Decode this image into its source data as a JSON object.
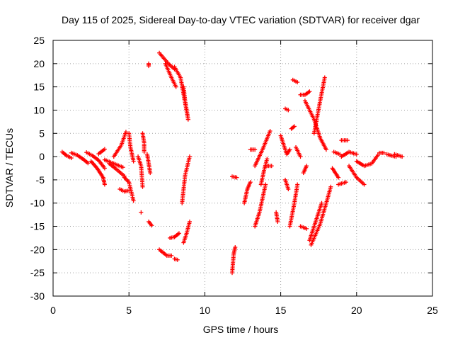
{
  "chart_data": {
    "type": "scatter",
    "title": "Day 115 of 2025, Sidereal Day-to-day VTEC variation (SDTVAR) for receiver dgar",
    "xlabel": "GPS time / hours",
    "ylabel": "SDTVAR / TECUs",
    "xlim": [
      0,
      25
    ],
    "ylim": [
      -30,
      25
    ],
    "xticks": [
      0,
      5,
      10,
      15,
      20,
      25
    ],
    "yticks": [
      -30,
      -25,
      -20,
      -15,
      -10,
      -5,
      0,
      5,
      10,
      15,
      20,
      25
    ],
    "grid": true,
    "marker": "plus",
    "color": "#ff0000",
    "series": [
      {
        "segments": [
          [
            [
              0.6,
              1.0
            ],
            [
              0.9,
              0.2
            ],
            [
              1.2,
              -0.3
            ]
          ],
          [
            [
              1.2,
              0.8
            ],
            [
              1.6,
              0.3
            ],
            [
              2.0,
              -0.6
            ],
            [
              2.3,
              -1.4
            ]
          ],
          [
            [
              2.2,
              0.9
            ],
            [
              2.6,
              0.2
            ],
            [
              3.0,
              -0.8
            ],
            [
              3.4,
              -2.5
            ]
          ],
          [
            [
              2.5,
              -1.0
            ],
            [
              2.9,
              -2.5
            ],
            [
              3.3,
              -4.5
            ],
            [
              3.4,
              -6.0
            ]
          ],
          [
            [
              3.0,
              0.6
            ],
            [
              3.4,
              1.6
            ]
          ],
          [
            [
              3.4,
              -0.7
            ],
            [
              4.0,
              -1.5
            ],
            [
              4.6,
              -2.3
            ]
          ],
          [
            [
              3.7,
              -1.5
            ],
            [
              4.2,
              -2.8
            ],
            [
              4.7,
              -4.2
            ]
          ],
          [
            [
              4.0,
              0.0
            ],
            [
              4.5,
              2.5
            ],
            [
              4.8,
              5.3
            ]
          ],
          [
            [
              4.4,
              -7.0
            ],
            [
              4.7,
              -7.5
            ],
            [
              5.0,
              -7.3
            ]
          ],
          [
            [
              4.7,
              -4.5
            ],
            [
              5.0,
              -5.5
            ],
            [
              5.3,
              -9.5
            ]
          ],
          [
            [
              5.0,
              5.0
            ],
            [
              5.1,
              2.0
            ],
            [
              5.3,
              -1.0
            ]
          ],
          [
            [
              5.6,
              0.0
            ],
            [
              5.8,
              -2.0
            ],
            [
              5.9,
              -6.5
            ]
          ],
          [
            [
              5.9,
              5.0
            ],
            [
              6.0,
              3.0
            ],
            [
              6.0,
              1.0
            ]
          ],
          [
            [
              6.3,
              20.0
            ],
            [
              6.3,
              19.5
            ]
          ],
          [
            [
              6.2,
              0.5
            ],
            [
              6.3,
              -1.5
            ],
            [
              6.4,
              -3.5
            ]
          ],
          [
            [
              6.3,
              -14.0
            ],
            [
              6.5,
              -14.8
            ]
          ],
          [
            [
              7.0,
              22.3
            ],
            [
              7.6,
              20.0
            ],
            [
              8.0,
              18.8
            ]
          ],
          [
            [
              7.4,
              20.0
            ],
            [
              7.8,
              17.0
            ],
            [
              8.1,
              15.0
            ]
          ],
          [
            [
              8.0,
              19.3
            ],
            [
              8.4,
              17.0
            ],
            [
              8.9,
              8.0
            ]
          ],
          [
            [
              8.6,
              15.0
            ],
            [
              8.7,
              12.0
            ],
            [
              8.9,
              8.0
            ]
          ],
          [
            [
              7.0,
              -20.0
            ],
            [
              7.5,
              -21.3
            ],
            [
              7.8,
              -21.3
            ]
          ],
          [
            [
              8.0,
              -22.0
            ],
            [
              8.2,
              -22.2
            ]
          ],
          [
            [
              7.7,
              -17.5
            ],
            [
              8.0,
              -17.3
            ],
            [
              8.3,
              -16.5
            ]
          ],
          [
            [
              8.5,
              -10.0
            ],
            [
              8.7,
              -4.0
            ],
            [
              9.0,
              0.0
            ]
          ],
          [
            [
              8.6,
              -18.5
            ],
            [
              8.8,
              -16.5
            ],
            [
              9.0,
              -14.0
            ]
          ],
          [
            [
              5.8,
              -12.0
            ]
          ],
          [
            [
              11.8,
              -25.0
            ],
            [
              11.9,
              -21.0
            ],
            [
              12.0,
              -19.5
            ]
          ],
          [
            [
              11.8,
              -4.3
            ],
            [
              12.1,
              -4.5
            ]
          ],
          [
            [
              12.6,
              -10.0
            ],
            [
              12.8,
              -7.0
            ],
            [
              13.0,
              -5.5
            ]
          ],
          [
            [
              13.0,
              1.5
            ],
            [
              13.3,
              1.5
            ]
          ],
          [
            [
              13.3,
              -2.0
            ],
            [
              13.8,
              1.5
            ],
            [
              14.3,
              5.5
            ]
          ],
          [
            [
              13.3,
              -15.0
            ],
            [
              13.6,
              -12.0
            ],
            [
              14.0,
              -6.0
            ]
          ],
          [
            [
              13.7,
              -6.0
            ],
            [
              13.9,
              -3.0
            ],
            [
              14.1,
              -0.5
            ]
          ],
          [
            [
              14.0,
              -2.0
            ],
            [
              14.4,
              -2.0
            ]
          ],
          [
            [
              14.7,
              -12.0
            ],
            [
              14.8,
              -14.0
            ]
          ],
          [
            [
              15.0,
              4.5
            ],
            [
              15.4,
              0.5
            ],
            [
              15.6,
              1.5
            ]
          ],
          [
            [
              15.3,
              10.3
            ],
            [
              15.5,
              10.0
            ]
          ],
          [
            [
              15.3,
              -5.0
            ],
            [
              15.5,
              -7.0
            ]
          ],
          [
            [
              15.7,
              6.0
            ],
            [
              15.9,
              6.5
            ]
          ],
          [
            [
              15.6,
              -15.0
            ],
            [
              15.9,
              -10.0
            ],
            [
              16.1,
              -6.0
            ]
          ],
          [
            [
              15.8,
              16.5
            ],
            [
              16.1,
              16.0
            ]
          ],
          [
            [
              16.0,
              2.0
            ],
            [
              16.3,
              0.0
            ]
          ],
          [
            [
              16.5,
              -3.5
            ],
            [
              16.7,
              -2.0
            ]
          ],
          [
            [
              16.3,
              13.3
            ],
            [
              16.6,
              13.3
            ],
            [
              16.9,
              14.0
            ]
          ],
          [
            [
              16.3,
              -15.0
            ],
            [
              16.7,
              -15.5
            ]
          ],
          [
            [
              16.6,
              12.0
            ],
            [
              17.2,
              8.0
            ],
            [
              17.6,
              4.0
            ],
            [
              18.0,
              1.5
            ]
          ],
          [
            [
              16.9,
              -18.0
            ],
            [
              17.3,
              -14.0
            ],
            [
              17.7,
              -10.0
            ]
          ],
          [
            [
              17.0,
              -19.0
            ],
            [
              17.6,
              -14.5
            ],
            [
              18.0,
              -10.0
            ],
            [
              18.3,
              -6.5
            ]
          ],
          [
            [
              17.2,
              5.0
            ],
            [
              17.6,
              12.0
            ],
            [
              17.9,
              17.0
            ]
          ],
          [
            [
              18.4,
              -2.5
            ],
            [
              18.8,
              -4.5
            ]
          ],
          [
            [
              18.5,
              1.0
            ],
            [
              18.9,
              0.5
            ]
          ],
          [
            [
              18.8,
              -6.0
            ],
            [
              19.3,
              -5.5
            ]
          ],
          [
            [
              19.0,
              3.5
            ],
            [
              19.4,
              3.5
            ]
          ],
          [
            [
              19.0,
              0.0
            ],
            [
              19.5,
              1.0
            ],
            [
              20.0,
              0.5
            ]
          ],
          [
            [
              19.5,
              -2.0
            ],
            [
              20.0,
              -4.5
            ],
            [
              20.5,
              -6.0
            ]
          ],
          [
            [
              20.0,
              -1.0
            ],
            [
              20.5,
              -2.0
            ],
            [
              21.0,
              -1.5
            ],
            [
              21.4,
              0.3
            ]
          ],
          [
            [
              21.5,
              0.8
            ],
            [
              21.8,
              0.8
            ]
          ],
          [
            [
              22.0,
              0.5
            ],
            [
              22.3,
              0.2
            ],
            [
              22.6,
              0.0
            ]
          ],
          [
            [
              22.5,
              0.5
            ],
            [
              23.0,
              0.0
            ]
          ]
        ]
      }
    ]
  }
}
